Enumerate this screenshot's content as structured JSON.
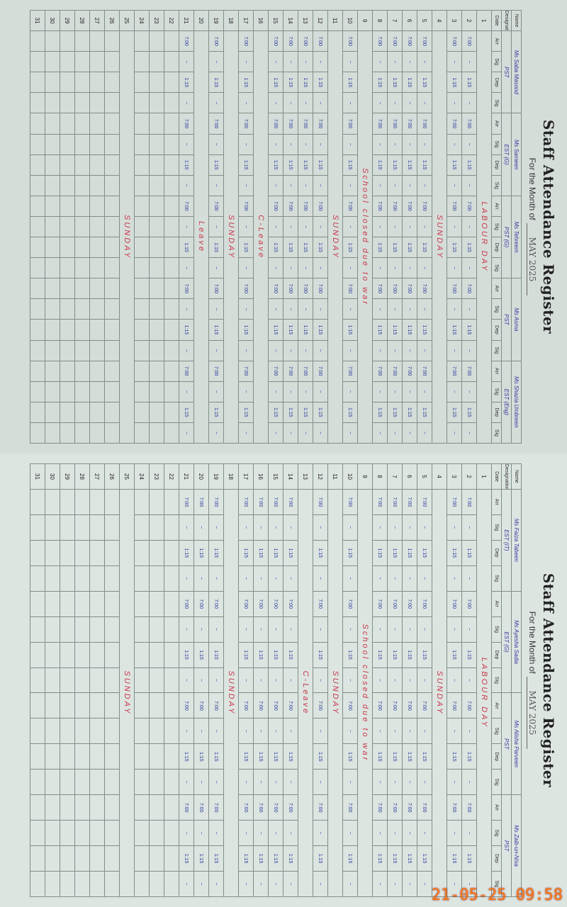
{
  "timestamp": "21-05-25  09:58",
  "pages": [
    {
      "id": "left",
      "title": "Staff Attendance Register",
      "month_label": "For the Month of",
      "month_value": "MAY 2025",
      "name_label": "Name",
      "designation_label": "Designation",
      "date_label": "Date",
      "col_labels": [
        "Arr",
        "Sig",
        "Dep",
        "Sig"
      ],
      "staff": [
        {
          "name": "Ms Saba Masood",
          "designation": "PST"
        },
        {
          "name": "Ms Sameen",
          "designation": "EST (G)"
        },
        {
          "name": "Ms Tehreem",
          "designation": "PST (G)"
        },
        {
          "name": "Ms Asma",
          "designation": "PST"
        },
        {
          "name": "Ms Shazia Umbreen",
          "designation": "EST (Eng)"
        }
      ],
      "notes": {
        "1": "LABOUR DAY",
        "4": "SUNDAY",
        "9": "School closed due to war",
        "11": "SUNDAY",
        "16": "C-Leave",
        "18": "SUNDAY",
        "20": "Leave",
        "25": "SUNDAY"
      },
      "filled_until": 21,
      "arr": "7:00",
      "dep": "1:15"
    },
    {
      "id": "right",
      "title": "Staff Attendance Register",
      "month_label": "For the Month of",
      "month_value": "MAY 2025",
      "name_label": "Name",
      "designation_label": "Designation",
      "date_label": "Date",
      "col_labels": [
        "Arr",
        "Sig",
        "Dep",
        "Sig"
      ],
      "staff": [
        {
          "name": "Ms Faiza Tabeen",
          "designation": "EST (IT)"
        },
        {
          "name": "Ms Ayesha Sadia",
          "designation": "EST (G)"
        },
        {
          "name": "Ms Alisha Parveen",
          "designation": "PST"
        },
        {
          "name": "Ms Zaib-un-Nisa",
          "designation": "PST"
        }
      ],
      "notes": {
        "1": "LABOUR DAY",
        "4": "SUNDAY",
        "9": "School closed due to war",
        "11": "SUNDAY",
        "13": "C-Leave",
        "18": "SUNDAY",
        "25": "SUNDAY"
      },
      "filled_until": 21,
      "arr": "7:00",
      "dep": "1:15"
    }
  ]
}
